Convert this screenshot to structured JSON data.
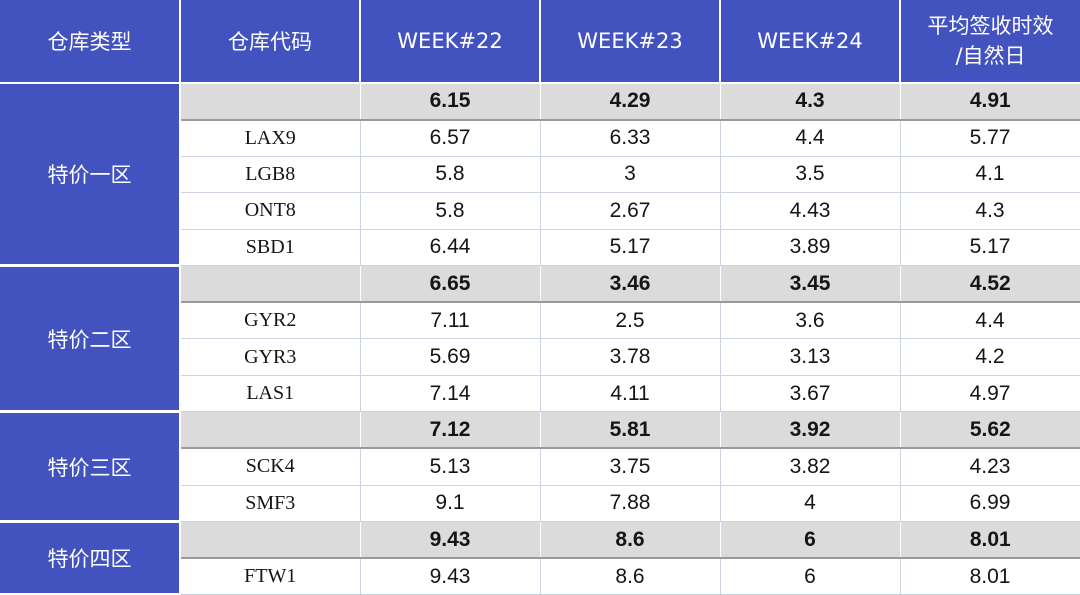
{
  "chart_data": {
    "type": "table",
    "title": "",
    "columns": [
      "仓库类型",
      "仓库代码",
      "WEEK#22",
      "WEEK#23",
      "WEEK#24",
      "平均签收时效\n/自然日"
    ],
    "groups": [
      {
        "type": "特价一区",
        "summary": [
          "6.15",
          "4.29",
          "4.3",
          "4.91"
        ],
        "rows": [
          [
            "LAX9",
            "6.57",
            "6.33",
            "4.4",
            "5.77"
          ],
          [
            "LGB8",
            "5.8",
            "3",
            "3.5",
            "4.1"
          ],
          [
            "ONT8",
            "5.8",
            "2.67",
            "4.43",
            "4.3"
          ],
          [
            "SBD1",
            "6.44",
            "5.17",
            "3.89",
            "5.17"
          ]
        ]
      },
      {
        "type": "特价二区",
        "summary": [
          "6.65",
          "3.46",
          "3.45",
          "4.52"
        ],
        "rows": [
          [
            "GYR2",
            "7.11",
            "2.5",
            "3.6",
            "4.4"
          ],
          [
            "GYR3",
            "5.69",
            "3.78",
            "3.13",
            "4.2"
          ],
          [
            "LAS1",
            "7.14",
            "4.11",
            "3.67",
            "4.97"
          ]
        ]
      },
      {
        "type": "特价三区",
        "summary": [
          "7.12",
          "5.81",
          "3.92",
          "5.62"
        ],
        "rows": [
          [
            "SCK4",
            "5.13",
            "3.75",
            "3.82",
            "4.23"
          ],
          [
            "SMF3",
            "9.1",
            "7.88",
            "4",
            "6.99"
          ]
        ]
      },
      {
        "type": "特价四区",
        "summary": [
          "9.43",
          "8.6",
          "6",
          "8.01"
        ],
        "rows": [
          [
            "FTW1",
            "9.43",
            "8.6",
            "6",
            "8.01"
          ]
        ]
      }
    ],
    "colors": {
      "header_bg": "#4252BE",
      "header_text": "#FFFFFF",
      "group_cell_bg": "#4252BE",
      "summary_row_bg": "#DBDBDB",
      "summary_divider": "#999999",
      "grid_line": "#CCD3E3",
      "body_text": "#151515",
      "row_bg": "#FFFFFF"
    },
    "layout": {
      "grid": "on",
      "header_rows": 1,
      "group_column_rowspan": true
    }
  }
}
